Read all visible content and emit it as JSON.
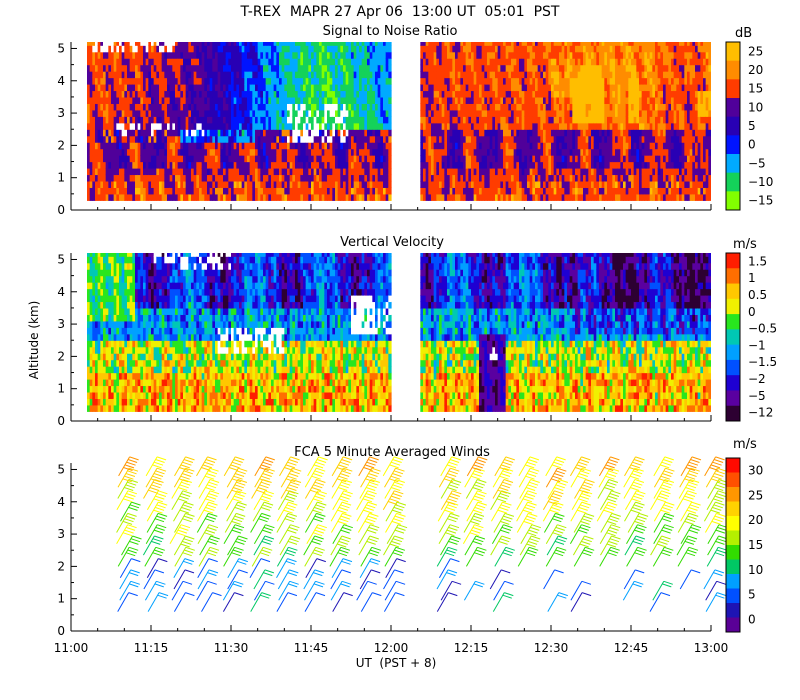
{
  "chart_data": {
    "type": "heatmap",
    "title": "T-REX  MAPR 27 Apr 06  13:00 UT  05:01  PST",
    "xlabel": "UT  (PST + 8)",
    "ylabel": "Altitude (km)",
    "xlim_minutes": [
      660,
      780
    ],
    "x_ticks": [
      "11:00",
      "11:15",
      "11:30",
      "11:45",
      "12:00",
      "12:15",
      "12:30",
      "12:45",
      "13:00"
    ],
    "y_ticks": [
      "0",
      "1",
      "2",
      "3",
      "4",
      "5"
    ],
    "ylim_km": [
      0,
      5.2
    ],
    "data_gap_ut": [
      "12:00",
      "12:05"
    ],
    "panels": [
      {
        "id": "snr",
        "title": "Signal to Noise Ratio",
        "units": "dB",
        "colorbar_labels": [
          "25",
          "20",
          "15",
          "10",
          "5",
          "0",
          "−5",
          "−10",
          "−15"
        ],
        "colorbar_colors": [
          "#ffbe00",
          "#ff8c00",
          "#ff3c00",
          "#50009a",
          "#2800b4",
          "#0014ff",
          "#00aaff",
          "#14d25a",
          "#82ff00"
        ]
      },
      {
        "id": "vv",
        "title": "Vertical Velocity",
        "units": "m/s",
        "colorbar_labels": [
          "1.5",
          "1",
          "0.5",
          "0",
          "−0.5",
          "−1",
          "−1.5",
          "−2",
          "−5",
          "−12"
        ],
        "colorbar_colors": [
          "#ff1e00",
          "#ff6e00",
          "#ffc800",
          "#f0f000",
          "#28e61e",
          "#00c8b4",
          "#00a0ff",
          "#0050ff",
          "#1e00d2",
          "#5a00a0",
          "#2d0032"
        ]
      },
      {
        "id": "wind",
        "title": "FCA 5 Minute Averaged Winds",
        "units": "m/s",
        "colorbar_labels": [
          "30",
          "25",
          "20",
          "15",
          "10",
          "5",
          "0"
        ],
        "colorbar_colors": [
          "#ff0a00",
          "#ff5000",
          "#ff9600",
          "#ffd200",
          "#ffff00",
          "#b4f000",
          "#32dc00",
          "#00c864",
          "#00a0ff",
          "#0050ff",
          "#1e14b4",
          "#5a0096"
        ]
      }
    ]
  }
}
